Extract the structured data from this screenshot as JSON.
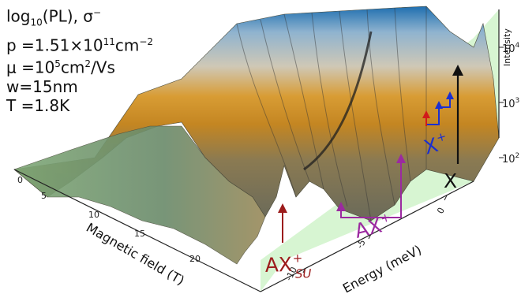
{
  "figure": {
    "quantity": "log",
    "quantity_sub": "10",
    "quantity_rest": "(PL), σ",
    "quantity_sup": "−",
    "param_lines": [
      {
        "pre": "p =1.51×10",
        "sup": "11",
        "post": "cm",
        "sup2": "−2"
      },
      {
        "pre": "μ =10",
        "sup": "5",
        "post": "cm",
        "sup2": "2",
        "post2": "/Vs"
      },
      {
        "pre": "w=15nm"
      },
      {
        "pre": "T =1.8K"
      }
    ],
    "colors": {
      "floor": "#d7f5d2",
      "axes": "#222222",
      "ax_su": "#9c1c1c",
      "ax_plus": "#9b2aa0",
      "x_plus": "#1a2fd1",
      "x_black": "#111111",
      "x_red": "#d11a1a"
    }
  },
  "chart_data": {
    "type": "surface",
    "title": "",
    "xlabel": "Energy (meV)",
    "ylabel": "Magnetic field (T)",
    "zlabel": "Intensity",
    "x_ticks": [
      "-10",
      "-5",
      "0"
    ],
    "y_ticks": [
      "0",
      "5",
      "10",
      "15",
      "20"
    ],
    "z_ticks": [
      {
        "base": "10",
        "exp": "2"
      },
      {
        "base": "10",
        "exp": "3"
      },
      {
        "base": "10",
        "exp": "4"
      }
    ],
    "z_scale": "log",
    "annotations": {
      "ax_su": {
        "base": "AX",
        "sup": "+",
        "sub": "SU"
      },
      "ax_plus": {
        "base": "AX",
        "sup": "+"
      },
      "x_plus": {
        "base": "X",
        "sup": "+"
      },
      "x": "X"
    }
  }
}
